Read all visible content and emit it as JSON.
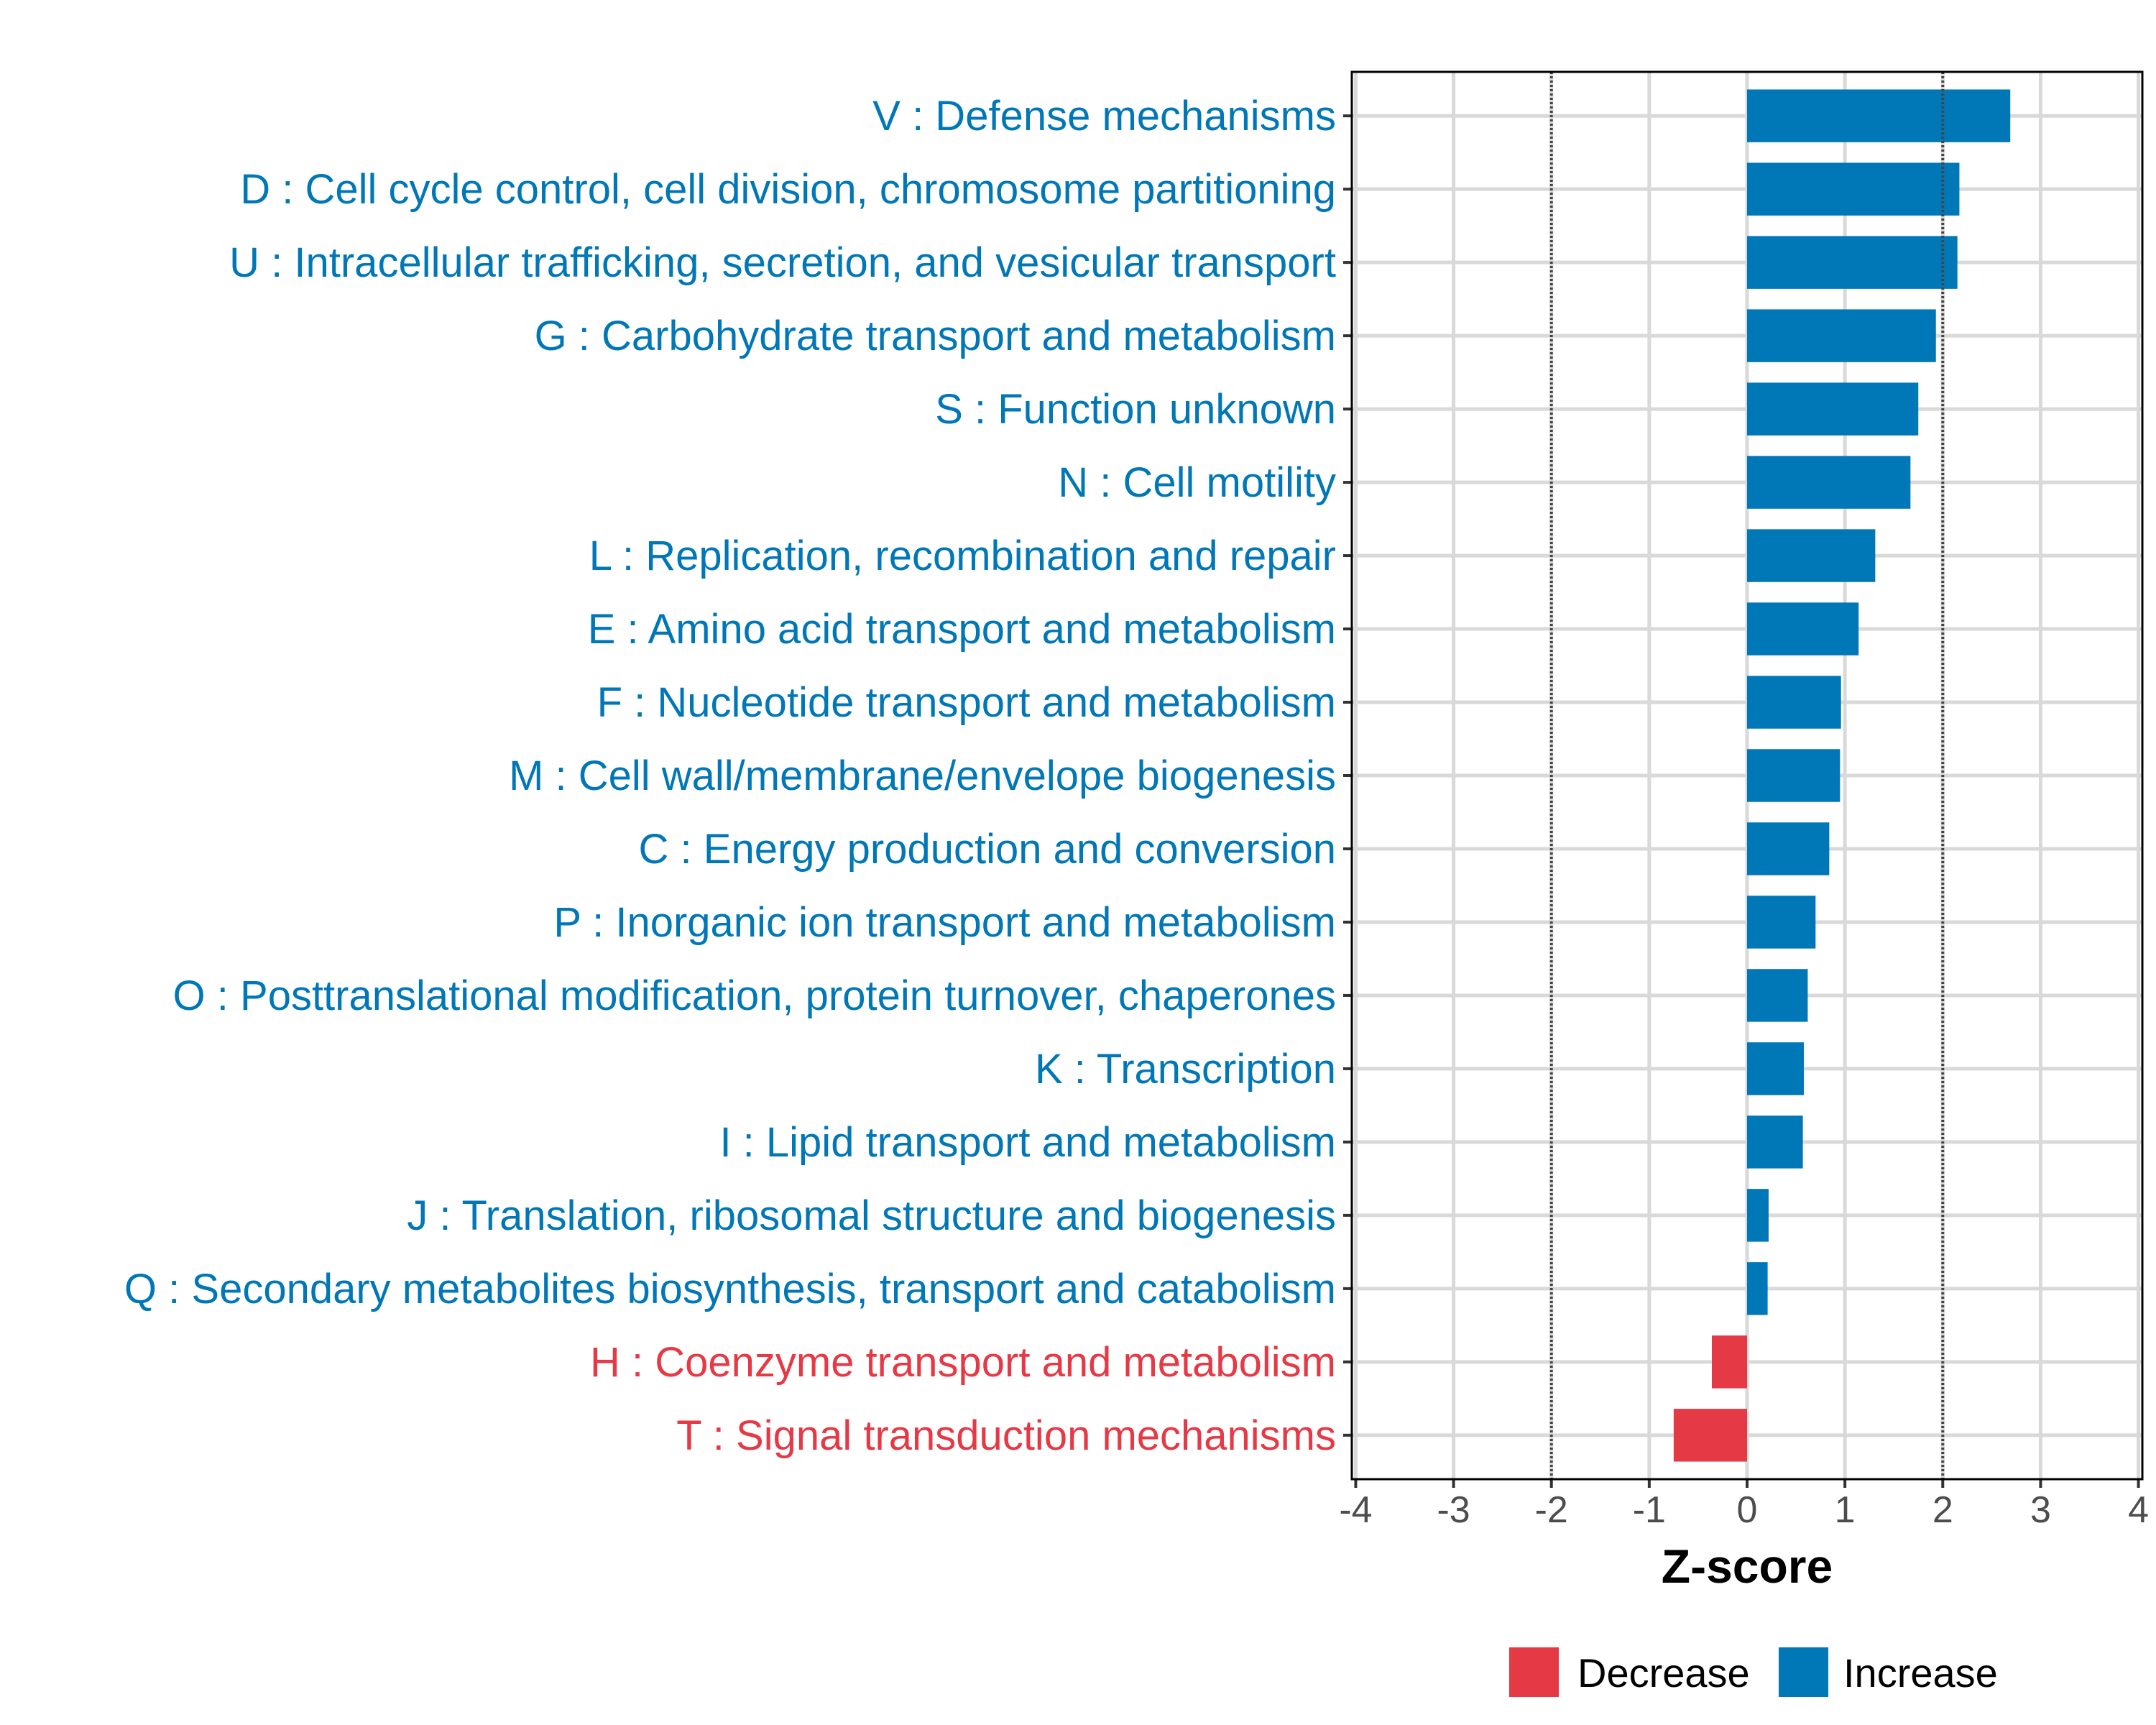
{
  "chart_data": {
    "type": "bar",
    "orientation": "horizontal",
    "title": "",
    "xlabel": "Z-score",
    "ylabel": "",
    "xlim": [
      -4.04,
      4.04
    ],
    "xticks": [
      -4,
      -3,
      -2,
      -1,
      0,
      1,
      2,
      3,
      4
    ],
    "xtick_labels": [
      "-4",
      "-3",
      "-2",
      "-1",
      "0",
      "1",
      "2",
      "3",
      "4"
    ],
    "reference_lines": [
      -2,
      2
    ],
    "grid": true,
    "legend_position": "bottom",
    "colors": {
      "Decrease": "#E63946",
      "Increase": "#0077B6"
    },
    "legend": [
      "Decrease",
      "Increase"
    ],
    "categories": [
      "V : Defense mechanisms",
      "D : Cell cycle control, cell division, chromosome partitioning",
      "U : Intracellular trafficking, secretion, and vesicular transport",
      "G : Carbohydrate transport and metabolism",
      "S : Function unknown",
      "N : Cell motility",
      "L : Replication, recombination and repair",
      "E : Amino acid transport and metabolism",
      "F : Nucleotide transport and metabolism",
      "M : Cell wall/membrane/envelope biogenesis",
      "C : Energy production and conversion",
      "P : Inorganic ion transport and metabolism",
      "O : Posttranslational modification, protein turnover, chaperones",
      "K : Transcription",
      "I : Lipid transport and metabolism",
      "J : Translation, ribosomal structure and biogenesis",
      "Q : Secondary metabolites biosynthesis, transport and catabolism",
      "H : Coenzyme transport and metabolism",
      "T : Signal transduction mechanisms"
    ],
    "values": [
      2.69,
      2.17,
      2.15,
      1.93,
      1.75,
      1.67,
      1.31,
      1.14,
      0.96,
      0.95,
      0.84,
      0.7,
      0.62,
      0.58,
      0.57,
      0.22,
      0.21,
      -0.36,
      -0.75
    ],
    "groups": [
      "Increase",
      "Increase",
      "Increase",
      "Increase",
      "Increase",
      "Increase",
      "Increase",
      "Increase",
      "Increase",
      "Increase",
      "Increase",
      "Increase",
      "Increase",
      "Increase",
      "Increase",
      "Increase",
      "Increase",
      "Decrease",
      "Decrease"
    ]
  }
}
